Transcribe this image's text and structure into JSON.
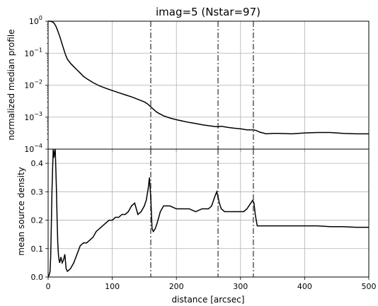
{
  "chart_data": [
    {
      "type": "line",
      "title": "imag=5 (Nstar=97)",
      "ylabel": "normalized median profile",
      "xlabel": "",
      "xlim": [
        0,
        500
      ],
      "ylim": [
        0.0001,
        1
      ],
      "yscale": "log",
      "grid": true,
      "yticks": [
        {
          "value": 0.0001,
          "label": "10"
        },
        {
          "value": 0.001,
          "label": "10"
        },
        {
          "value": 0.01,
          "label": "10"
        },
        {
          "value": 0.1,
          "label": "10"
        },
        {
          "value": 1,
          "label": "10"
        }
      ],
      "ytick_exponents": [
        "−4",
        "−3",
        "−2",
        "−1",
        "0"
      ],
      "vlines": [
        160,
        265,
        320
      ],
      "series": [
        {
          "x": [
            0,
            3,
            6,
            9,
            12,
            15,
            18,
            21,
            24,
            27,
            30,
            35,
            40,
            45,
            50,
            55,
            60,
            70,
            80,
            90,
            100,
            110,
            120,
            130,
            140,
            150,
            155,
            160,
            165,
            170,
            180,
            190,
            200,
            210,
            220,
            230,
            240,
            250,
            260,
            265,
            270,
            280,
            290,
            300,
            310,
            320,
            325,
            330,
            335,
            340,
            350,
            360,
            380,
            400,
            420,
            440,
            460,
            480,
            500
          ],
          "y": [
            1.0,
            1.0,
            0.97,
            0.88,
            0.7,
            0.5,
            0.34,
            0.22,
            0.14,
            0.09,
            0.065,
            0.048,
            0.038,
            0.03,
            0.024,
            0.019,
            0.016,
            0.012,
            0.0095,
            0.008,
            0.0068,
            0.0058,
            0.005,
            0.0043,
            0.0036,
            0.003,
            0.0026,
            0.0021,
            0.0017,
            0.0014,
            0.0011,
            0.00094,
            0.00083,
            0.00075,
            0.00068,
            0.00063,
            0.00058,
            0.00054,
            0.00051,
            0.0005,
            0.00052,
            0.00048,
            0.00045,
            0.00043,
            0.0004,
            0.0004,
            0.00038,
            0.00034,
            0.00032,
            0.0003,
            0.00031,
            0.00031,
            0.0003,
            0.00032,
            0.00033,
            0.00033,
            0.00031,
            0.0003,
            0.0003
          ]
        }
      ]
    },
    {
      "type": "line",
      "title": "",
      "xlabel": "distance [arcsec]",
      "ylabel": "mean source density",
      "xlim": [
        0,
        500
      ],
      "ylim": [
        0,
        0.45
      ],
      "grid": true,
      "xticks": [
        0,
        100,
        200,
        300,
        400,
        500
      ],
      "xtick_labels": [
        "0",
        "100",
        "200",
        "300",
        "400",
        "500"
      ],
      "yticks": [
        0.0,
        0.1,
        0.2,
        0.3,
        0.4
      ],
      "ytick_labels": [
        "0.0",
        "0.1",
        "0.2",
        "0.3",
        "0.4"
      ],
      "vlines": [
        160,
        265,
        320
      ],
      "series": [
        {
          "x": [
            0,
            2,
            3,
            4,
            5,
            6,
            7,
            8,
            9,
            10,
            11,
            12,
            13,
            14,
            15,
            16,
            17,
            18,
            20,
            22,
            24,
            26,
            28,
            30,
            35,
            40,
            45,
            50,
            55,
            60,
            65,
            70,
            75,
            80,
            85,
            90,
            95,
            100,
            105,
            110,
            115,
            120,
            125,
            130,
            135,
            140,
            145,
            150,
            153,
            156,
            158,
            160,
            162,
            164,
            167,
            170,
            175,
            180,
            190,
            200,
            210,
            220,
            230,
            240,
            250,
            255,
            258,
            261,
            263,
            265,
            267,
            270,
            275,
            280,
            290,
            300,
            305,
            310,
            313,
            316,
            319,
            321,
            323,
            326,
            330,
            340,
            360,
            380,
            400,
            420,
            440,
            460,
            480,
            500
          ],
          "y": [
            0.0,
            0.01,
            0.02,
            0.07,
            0.18,
            0.3,
            0.38,
            0.45,
            0.42,
            0.44,
            0.45,
            0.38,
            0.3,
            0.2,
            0.12,
            0.08,
            0.06,
            0.05,
            0.07,
            0.05,
            0.06,
            0.08,
            0.03,
            0.02,
            0.03,
            0.05,
            0.08,
            0.11,
            0.12,
            0.12,
            0.13,
            0.14,
            0.16,
            0.17,
            0.18,
            0.19,
            0.2,
            0.2,
            0.21,
            0.21,
            0.22,
            0.22,
            0.23,
            0.25,
            0.26,
            0.22,
            0.23,
            0.25,
            0.27,
            0.31,
            0.35,
            0.28,
            0.17,
            0.16,
            0.17,
            0.19,
            0.23,
            0.25,
            0.25,
            0.24,
            0.24,
            0.24,
            0.23,
            0.24,
            0.24,
            0.25,
            0.27,
            0.29,
            0.3,
            0.28,
            0.26,
            0.24,
            0.23,
            0.23,
            0.23,
            0.23,
            0.23,
            0.24,
            0.25,
            0.26,
            0.27,
            0.26,
            0.22,
            0.18,
            0.18,
            0.18,
            0.18,
            0.18,
            0.18,
            0.18,
            0.177,
            0.177,
            0.175,
            0.175
          ]
        }
      ]
    }
  ]
}
